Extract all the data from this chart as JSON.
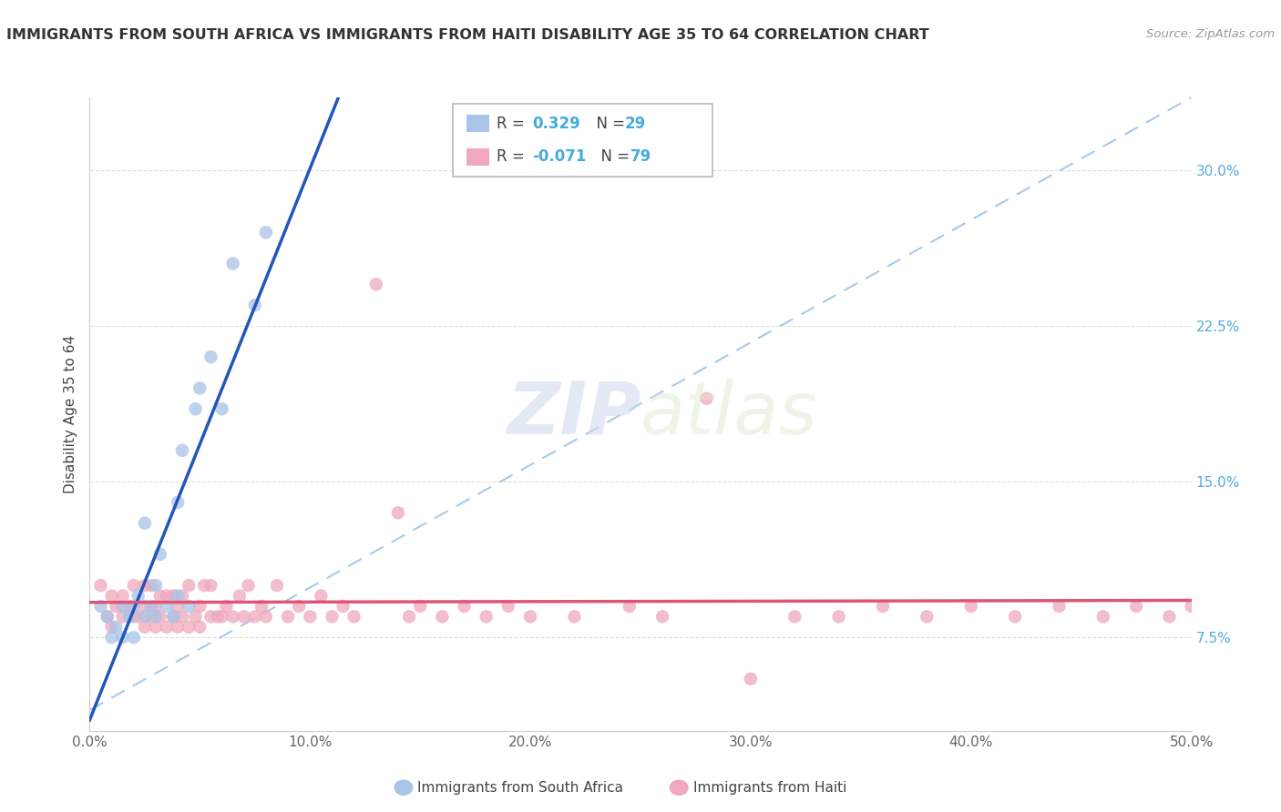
{
  "title": "IMMIGRANTS FROM SOUTH AFRICA VS IMMIGRANTS FROM HAITI DISABILITY AGE 35 TO 64 CORRELATION CHART",
  "source": "Source: ZipAtlas.com",
  "ylabel": "Disability Age 35 to 64",
  "xlim": [
    0.0,
    0.5
  ],
  "ylim": [
    0.03,
    0.335
  ],
  "xticks": [
    0.0,
    0.1,
    0.2,
    0.3,
    0.4,
    0.5
  ],
  "xtick_labels": [
    "0.0%",
    "10.0%",
    "20.0%",
    "30.0%",
    "40.0%",
    "50.0%"
  ],
  "yticks": [
    0.075,
    0.15,
    0.225,
    0.3
  ],
  "ytick_labels": [
    "7.5%",
    "15.0%",
    "22.5%",
    "30.0%"
  ],
  "blue_color": "#a8c4e8",
  "pink_color": "#f0a8bc",
  "blue_line_color": "#2255bb",
  "pink_line_color": "#dd5577",
  "diag_line_color": "#aac8e8",
  "watermark_zip": "ZIP",
  "watermark_atlas": "atlas",
  "sa_x": [
    0.005,
    0.008,
    0.01,
    0.012,
    0.015,
    0.015,
    0.018,
    0.02,
    0.02,
    0.022,
    0.025,
    0.025,
    0.028,
    0.03,
    0.03,
    0.032,
    0.035,
    0.038,
    0.04,
    0.04,
    0.042,
    0.045,
    0.048,
    0.05,
    0.055,
    0.06,
    0.065,
    0.075,
    0.08
  ],
  "sa_y": [
    0.09,
    0.085,
    0.075,
    0.08,
    0.075,
    0.09,
    0.085,
    0.075,
    0.09,
    0.095,
    0.085,
    0.13,
    0.09,
    0.085,
    0.1,
    0.115,
    0.09,
    0.085,
    0.095,
    0.14,
    0.165,
    0.09,
    0.185,
    0.195,
    0.21,
    0.185,
    0.255,
    0.235,
    0.27
  ],
  "ht_x": [
    0.005,
    0.008,
    0.01,
    0.01,
    0.012,
    0.015,
    0.015,
    0.018,
    0.02,
    0.02,
    0.022,
    0.025,
    0.025,
    0.025,
    0.028,
    0.028,
    0.03,
    0.03,
    0.032,
    0.032,
    0.035,
    0.035,
    0.038,
    0.038,
    0.04,
    0.04,
    0.042,
    0.042,
    0.045,
    0.045,
    0.048,
    0.05,
    0.05,
    0.052,
    0.055,
    0.055,
    0.058,
    0.06,
    0.062,
    0.065,
    0.068,
    0.07,
    0.072,
    0.075,
    0.078,
    0.08,
    0.085,
    0.09,
    0.095,
    0.1,
    0.105,
    0.11,
    0.115,
    0.12,
    0.13,
    0.14,
    0.145,
    0.15,
    0.16,
    0.17,
    0.18,
    0.19,
    0.2,
    0.22,
    0.245,
    0.26,
    0.28,
    0.3,
    0.32,
    0.34,
    0.36,
    0.38,
    0.4,
    0.42,
    0.44,
    0.46,
    0.475,
    0.49,
    0.5
  ],
  "ht_y": [
    0.1,
    0.085,
    0.08,
    0.095,
    0.09,
    0.085,
    0.095,
    0.09,
    0.085,
    0.1,
    0.085,
    0.08,
    0.09,
    0.1,
    0.085,
    0.1,
    0.08,
    0.09,
    0.085,
    0.095,
    0.08,
    0.095,
    0.085,
    0.095,
    0.08,
    0.09,
    0.085,
    0.095,
    0.08,
    0.1,
    0.085,
    0.08,
    0.09,
    0.1,
    0.085,
    0.1,
    0.085,
    0.085,
    0.09,
    0.085,
    0.095,
    0.085,
    0.1,
    0.085,
    0.09,
    0.085,
    0.1,
    0.085,
    0.09,
    0.085,
    0.095,
    0.085,
    0.09,
    0.085,
    0.245,
    0.135,
    0.085,
    0.09,
    0.085,
    0.09,
    0.085,
    0.09,
    0.085,
    0.085,
    0.09,
    0.085,
    0.19,
    0.055,
    0.085,
    0.085,
    0.09,
    0.085,
    0.09,
    0.085,
    0.09,
    0.085,
    0.09,
    0.085,
    0.09
  ]
}
